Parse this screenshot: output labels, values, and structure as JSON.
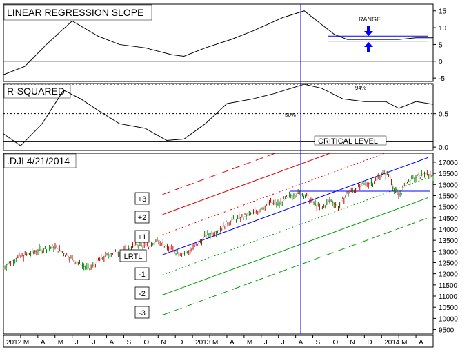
{
  "chart_data": [
    {
      "type": "line",
      "title": "LINEAR REGRESSION SLOPE",
      "y_ticks": [
        15,
        10,
        5,
        0,
        -5
      ],
      "ylim": [
        -6,
        17
      ],
      "annotation": "RANGE",
      "reference_line": 0,
      "range_band": [
        6,
        7.5
      ],
      "series": [
        {
          "values": [
            [
              0,
              -4
            ],
            [
              0.05,
              -1.5
            ],
            [
              0.1,
              5
            ],
            [
              0.16,
              12
            ],
            [
              0.22,
              7.5
            ],
            [
              0.27,
              5
            ],
            [
              0.33,
              4
            ],
            [
              0.39,
              2
            ],
            [
              0.42,
              1.5
            ],
            [
              0.47,
              4
            ],
            [
              0.53,
              6.5
            ],
            [
              0.58,
              9
            ],
            [
              0.65,
              13
            ],
            [
              0.7,
              15
            ],
            [
              0.73,
              12
            ],
            [
              0.77,
              8
            ],
            [
              0.8,
              6.5
            ],
            [
              0.85,
              6.5
            ],
            [
              0.88,
              6.5
            ],
            [
              0.92,
              6.5
            ],
            [
              0.96,
              7
            ],
            [
              1.0,
              7
            ]
          ]
        }
      ]
    },
    {
      "type": "line",
      "title": "R-SQUARED",
      "y_ticks": [
        "0.5",
        "0.0"
      ],
      "ylim": [
        -0.05,
        0.95
      ],
      "annotations": [
        "94%",
        "50%",
        "CRITICAL LEVEL"
      ],
      "reference_lines": [
        0.94,
        0.5,
        0.08
      ],
      "series": [
        {
          "values": [
            [
              0,
              0.2
            ],
            [
              0.04,
              0.02
            ],
            [
              0.09,
              0.35
            ],
            [
              0.14,
              0.85
            ],
            [
              0.18,
              0.72
            ],
            [
              0.22,
              0.55
            ],
            [
              0.27,
              0.35
            ],
            [
              0.33,
              0.28
            ],
            [
              0.38,
              0.1
            ],
            [
              0.42,
              0.12
            ],
            [
              0.47,
              0.35
            ],
            [
              0.52,
              0.65
            ],
            [
              0.58,
              0.72
            ],
            [
              0.63,
              0.8
            ],
            [
              0.7,
              0.94
            ],
            [
              0.74,
              0.88
            ],
            [
              0.79,
              0.72
            ],
            [
              0.84,
              0.68
            ],
            [
              0.89,
              0.68
            ],
            [
              0.92,
              0.58
            ],
            [
              0.96,
              0.68
            ],
            [
              1.0,
              0.64
            ]
          ]
        }
      ]
    },
    {
      "type": "line",
      "title": ".DJI  4/21/2014",
      "y_ticks": [
        17000,
        16500,
        16000,
        15500,
        15000,
        14500,
        14000,
        13500,
        13000,
        12500,
        12000,
        11500,
        11000,
        10500,
        10000,
        9500
      ],
      "ylim": [
        9300,
        17400
      ],
      "x_categories": [
        "2012",
        "M",
        "A",
        "M",
        "J",
        "J",
        "A",
        "S",
        "O",
        "N",
        "D",
        "2013",
        "M",
        "A",
        "M",
        "J",
        "J",
        "A",
        "S",
        "O",
        "N",
        "D",
        "2014",
        "M",
        "A"
      ],
      "channel_labels": [
        "+3",
        "+2",
        "+1",
        "LRTL",
        "-1",
        "-2",
        "-3"
      ],
      "channel_lines": {
        "start_x": 0.37,
        "end_x": 1.0,
        "lrtl_start": 12850,
        "lrtl_end": 17200,
        "step": 900
      },
      "horizontal_line": 15700,
      "series": [
        {
          "name": ".DJI",
          "values": [
            [
              0.0,
              12300
            ],
            [
              0.03,
              12700
            ],
            [
              0.06,
              12900
            ],
            [
              0.09,
              13100
            ],
            [
              0.12,
              13200
            ],
            [
              0.15,
              12800
            ],
            [
              0.18,
              12400
            ],
            [
              0.2,
              12200
            ],
            [
              0.22,
              12600
            ],
            [
              0.25,
              12900
            ],
            [
              0.28,
              13000
            ],
            [
              0.31,
              13300
            ],
            [
              0.34,
              13200
            ],
            [
              0.36,
              13550
            ],
            [
              0.38,
              13200
            ],
            [
              0.4,
              13000
            ],
            [
              0.42,
              12900
            ],
            [
              0.44,
              13100
            ],
            [
              0.47,
              13700
            ],
            [
              0.5,
              13950
            ],
            [
              0.53,
              14400
            ],
            [
              0.56,
              14550
            ],
            [
              0.59,
              14800
            ],
            [
              0.62,
              15200
            ],
            [
              0.64,
              15100
            ],
            [
              0.66,
              15400
            ],
            [
              0.68,
              15600
            ],
            [
              0.7,
              15550
            ],
            [
              0.72,
              15200
            ],
            [
              0.74,
              14900
            ],
            [
              0.76,
              15300
            ],
            [
              0.78,
              15000
            ],
            [
              0.8,
              15600
            ],
            [
              0.82,
              15800
            ],
            [
              0.84,
              16000
            ],
            [
              0.86,
              16100
            ],
            [
              0.88,
              16500
            ],
            [
              0.9,
              16400
            ],
            [
              0.91,
              15700
            ],
            [
              0.92,
              15500
            ],
            [
              0.94,
              16100
            ],
            [
              0.96,
              16300
            ],
            [
              0.98,
              16500
            ],
            [
              1.0,
              16400
            ]
          ]
        }
      ]
    }
  ]
}
